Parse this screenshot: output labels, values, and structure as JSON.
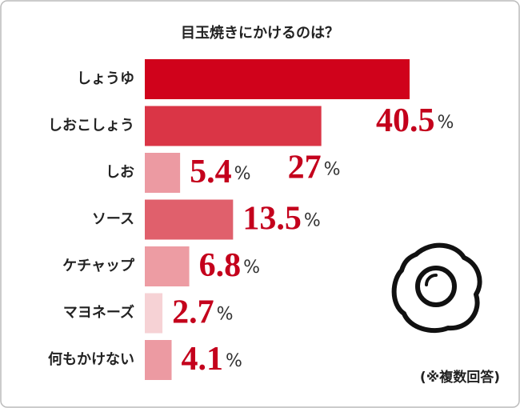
{
  "chart_data": {
    "type": "bar",
    "orientation": "horizontal",
    "title": "目玉焼きにかけるのは？",
    "categories": [
      "しょうゆ",
      "しおこしょう",
      "しお",
      "ソース",
      "ケチャップ",
      "マヨネーズ",
      "何もかけない"
    ],
    "values": [
      40.5,
      27,
      5.4,
      13.5,
      6.8,
      2.7,
      4.1
    ],
    "value_unit": "%",
    "colors": [
      "#d0021b",
      "#da3546",
      "#ec9aa2",
      "#e0606c",
      "#ed9ca3",
      "#f6d2d5",
      "#ec9aa2"
    ],
    "note": "(※複数回答)"
  }
}
